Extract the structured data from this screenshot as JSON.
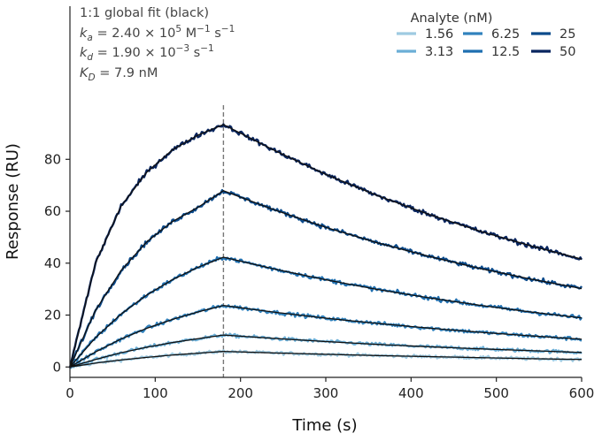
{
  "chart_data": {
    "type": "line",
    "xlabel": "Time (s)",
    "ylabel": "Response (RU)",
    "xlim": [
      0,
      600
    ],
    "ylim": [
      -4,
      139
    ],
    "x_ticks": [
      0,
      100,
      200,
      300,
      400,
      500,
      600
    ],
    "y_ticks": [
      0,
      20,
      40,
      60,
      80
    ],
    "grid": false,
    "injection_end_s": 180,
    "annotations": [
      {
        "key": "title",
        "text": "1:1 global fit (black)"
      },
      {
        "key": "ka",
        "sym": "k",
        "sub": "a",
        "text": "= 2.40 × 10",
        "sup": "5",
        "unit": "M",
        "unit_sup": "−1",
        "tail": "s",
        "tail_sup": "−1"
      },
      {
        "key": "kd",
        "sym": "k",
        "sub": "d",
        "text": "= 1.90 × 10",
        "sup": "−3",
        "tail": "s",
        "tail_sup": "−1"
      },
      {
        "key": "KD",
        "sym": "K",
        "sub": "D",
        "text": "= 7.9 nM"
      }
    ],
    "legend": {
      "title": "Analyte (nM)",
      "placement": "top-right"
    },
    "fit_color": "#111111",
    "series": [
      {
        "name": "1.56",
        "color": "#9ecae1",
        "x": [
          0,
          30,
          60,
          90,
          120,
          150,
          180,
          240,
          300,
          360,
          420,
          480,
          540,
          600
        ],
        "y": [
          0,
          1.5,
          2.7,
          3.7,
          4.6,
          5.3,
          6.0,
          5.4,
          4.9,
          4.4,
          4.0,
          3.6,
          3.2,
          2.9
        ]
      },
      {
        "name": "3.13",
        "color": "#6baed6",
        "x": [
          0,
          30,
          60,
          90,
          120,
          150,
          180,
          240,
          300,
          360,
          420,
          480,
          540,
          600
        ],
        "y": [
          0,
          2.9,
          5.5,
          7.6,
          9.4,
          10.9,
          12.3,
          11.0,
          9.8,
          8.7,
          7.8,
          7.0,
          6.3,
          5.6
        ]
      },
      {
        "name": "6.25",
        "color": "#3182bd",
        "x": [
          0,
          30,
          60,
          90,
          120,
          150,
          180,
          240,
          300,
          360,
          420,
          480,
          540,
          600
        ],
        "y": [
          0,
          5.8,
          10.8,
          14.9,
          18.3,
          21.2,
          23.7,
          21.1,
          18.8,
          16.8,
          15.0,
          13.4,
          12.0,
          10.7
        ]
      },
      {
        "name": "12.5",
        "color": "#1f6fb0",
        "x": [
          0,
          30,
          60,
          90,
          120,
          150,
          180,
          240,
          300,
          360,
          420,
          480,
          540,
          600
        ],
        "y": [
          0,
          11.3,
          20.4,
          27.7,
          33.6,
          38.4,
          42.3,
          37.7,
          33.6,
          29.9,
          26.7,
          23.8,
          21.2,
          18.9
        ]
      },
      {
        "name": "25",
        "color": "#0b4a8b",
        "x": [
          0,
          30,
          60,
          90,
          120,
          150,
          180,
          240,
          300,
          360,
          420,
          480,
          540,
          600
        ],
        "y": [
          0,
          21.8,
          37.2,
          48.2,
          56.0,
          61.5,
          67.9,
          60.5,
          53.8,
          47.9,
          42.7,
          38.0,
          33.9,
          30.2
        ]
      },
      {
        "name": "50",
        "color": "#08255f",
        "x": [
          0,
          30,
          60,
          90,
          120,
          150,
          180,
          240,
          300,
          360,
          420,
          480,
          540,
          600
        ],
        "y": [
          0,
          40.1,
          62.0,
          75.0,
          83.6,
          89.3,
          93.4,
          83.4,
          74.2,
          66.1,
          58.9,
          52.4,
          46.7,
          41.6
        ]
      }
    ]
  }
}
